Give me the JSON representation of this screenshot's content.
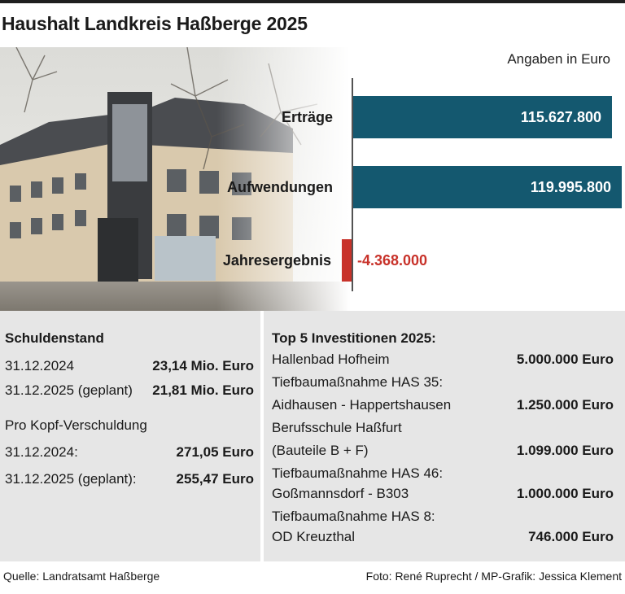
{
  "header": {
    "title": "Haushalt Landkreis Haßberge 2025"
  },
  "chart_data": {
    "type": "bar",
    "unit_note": "Angaben in Euro",
    "categories": [
      "Erträge",
      "Aufwendungen",
      "Jahresergebnis"
    ],
    "values": [
      115627800,
      119995800,
      -4368000
    ],
    "value_labels": [
      "115.627.800",
      "119.995.800",
      "-4.368.000"
    ],
    "colors": {
      "positive": "#14586f",
      "negative": "#c8322a"
    }
  },
  "schulden": {
    "title": "Schuldenstand",
    "rows": [
      {
        "label": "31.12.2024",
        "value": "23,14 Mio. Euro"
      },
      {
        "label": "31.12.2025 (geplant)",
        "value": "21,81 Mio. Euro"
      }
    ],
    "prokopf_title": "Pro Kopf-Verschuldung",
    "prokopf_rows": [
      {
        "label": "31.12.2024:",
        "value": "271,05 Euro"
      },
      {
        "label": "31.12.2025 (geplant):",
        "value": "255,47 Euro"
      }
    ]
  },
  "investitionen": {
    "title": "Top 5 Investitionen 2025:",
    "items": [
      {
        "line1": "Hallenbad Hofheim",
        "line2": "",
        "value": "5.000.000 Euro"
      },
      {
        "line1": "Tiefbaumaßnahme HAS 35:",
        "line2": "Aidhausen - Happertshausen",
        "value": "1.250.000 Euro"
      },
      {
        "line1": "Berufsschule Haßfurt",
        "line2": "(Bauteile B + F)",
        "value": "1.099.000 Euro"
      },
      {
        "line1": "Tiefbaumaßnahme HAS 46:",
        "line2": "Goßmannsdorf - B303",
        "value": "1.000.000 Euro"
      },
      {
        "line1": "Tiefbaumaßnahme HAS 8:",
        "line2": "OD Kreuzthal",
        "value": "746.000 Euro"
      }
    ]
  },
  "footer": {
    "source": "Quelle:  Landratsamt Haßberge",
    "credits": "Foto: René Ruprecht / MP-Grafik: Jessica Klement"
  }
}
